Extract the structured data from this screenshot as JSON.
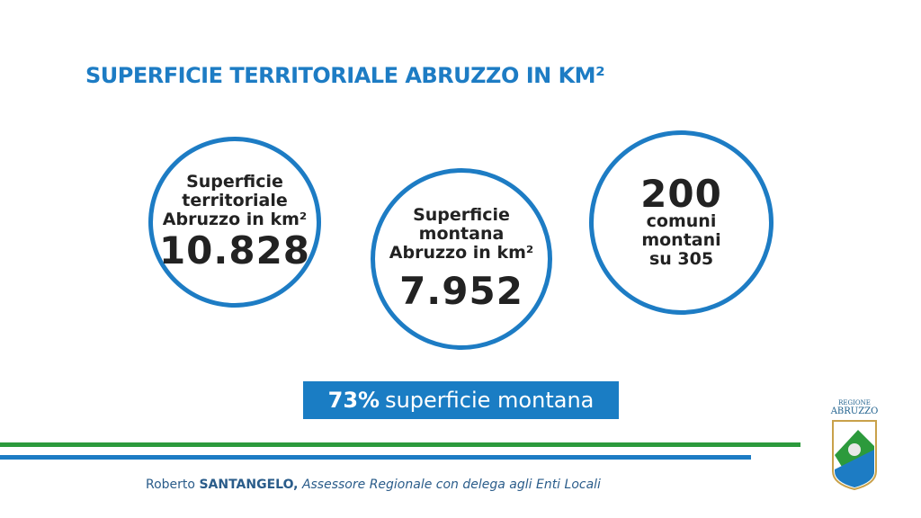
{
  "header": {
    "title": "SUPERFICIE TERRITORIALE ABRUZZO IN KM²"
  },
  "circles": [
    {
      "label_lines": [
        "Superficie",
        "territoriale",
        "Abruzzo in km²"
      ],
      "value": "10.828"
    },
    {
      "label_lines": [
        "Superficie",
        "montana",
        "Abruzzo in km²"
      ],
      "value": "7.952"
    },
    {
      "value": "200",
      "label_lines": [
        "comuni",
        "montani",
        "su 305"
      ]
    }
  ],
  "banner": {
    "percent": "73%",
    "text": "superficie montana"
  },
  "footer": {
    "name_first": "Roberto",
    "name_last": "SANTANGELO,",
    "role": "Assessore Regionale con delega agli Enti Locali"
  },
  "logo": {
    "line1": "REGIONE",
    "line2": "ABRUZZO"
  }
}
